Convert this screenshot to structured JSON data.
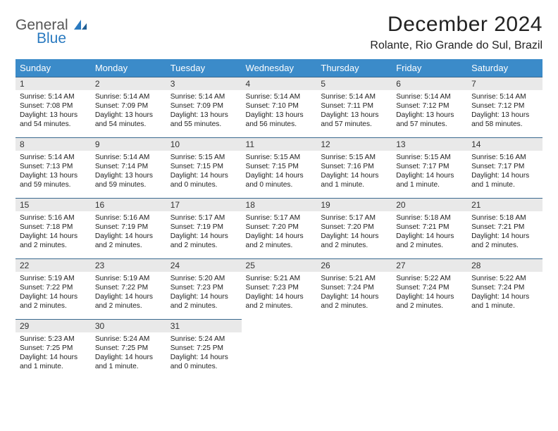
{
  "brand": {
    "word1": "General",
    "word2": "Blue",
    "accent_color": "#2a7ac0",
    "text_color": "#555"
  },
  "header": {
    "title": "December 2024",
    "location": "Rolante, Rio Grande do Sul, Brazil"
  },
  "style": {
    "header_bg": "#3b8bc9",
    "header_text": "#ffffff",
    "daynum_bg": "#e9e9e9",
    "row_border": "#3b6a8f",
    "body_text": "#222222",
    "font_family": "Arial",
    "title_fontsize": 30,
    "location_fontsize": 16,
    "weekday_fontsize": 13,
    "daynum_fontsize": 12,
    "cell_fontsize": 10.2
  },
  "weekdays": [
    "Sunday",
    "Monday",
    "Tuesday",
    "Wednesday",
    "Thursday",
    "Friday",
    "Saturday"
  ],
  "days": [
    {
      "n": "1",
      "sr": "5:14 AM",
      "ss": "7:08 PM",
      "dl": "13 hours and 54 minutes."
    },
    {
      "n": "2",
      "sr": "5:14 AM",
      "ss": "7:09 PM",
      "dl": "13 hours and 54 minutes."
    },
    {
      "n": "3",
      "sr": "5:14 AM",
      "ss": "7:09 PM",
      "dl": "13 hours and 55 minutes."
    },
    {
      "n": "4",
      "sr": "5:14 AM",
      "ss": "7:10 PM",
      "dl": "13 hours and 56 minutes."
    },
    {
      "n": "5",
      "sr": "5:14 AM",
      "ss": "7:11 PM",
      "dl": "13 hours and 57 minutes."
    },
    {
      "n": "6",
      "sr": "5:14 AM",
      "ss": "7:12 PM",
      "dl": "13 hours and 57 minutes."
    },
    {
      "n": "7",
      "sr": "5:14 AM",
      "ss": "7:12 PM",
      "dl": "13 hours and 58 minutes."
    },
    {
      "n": "8",
      "sr": "5:14 AM",
      "ss": "7:13 PM",
      "dl": "13 hours and 59 minutes."
    },
    {
      "n": "9",
      "sr": "5:14 AM",
      "ss": "7:14 PM",
      "dl": "13 hours and 59 minutes."
    },
    {
      "n": "10",
      "sr": "5:15 AM",
      "ss": "7:15 PM",
      "dl": "14 hours and 0 minutes."
    },
    {
      "n": "11",
      "sr": "5:15 AM",
      "ss": "7:15 PM",
      "dl": "14 hours and 0 minutes."
    },
    {
      "n": "12",
      "sr": "5:15 AM",
      "ss": "7:16 PM",
      "dl": "14 hours and 1 minute."
    },
    {
      "n": "13",
      "sr": "5:15 AM",
      "ss": "7:17 PM",
      "dl": "14 hours and 1 minute."
    },
    {
      "n": "14",
      "sr": "5:16 AM",
      "ss": "7:17 PM",
      "dl": "14 hours and 1 minute."
    },
    {
      "n": "15",
      "sr": "5:16 AM",
      "ss": "7:18 PM",
      "dl": "14 hours and 2 minutes."
    },
    {
      "n": "16",
      "sr": "5:16 AM",
      "ss": "7:19 PM",
      "dl": "14 hours and 2 minutes."
    },
    {
      "n": "17",
      "sr": "5:17 AM",
      "ss": "7:19 PM",
      "dl": "14 hours and 2 minutes."
    },
    {
      "n": "18",
      "sr": "5:17 AM",
      "ss": "7:20 PM",
      "dl": "14 hours and 2 minutes."
    },
    {
      "n": "19",
      "sr": "5:17 AM",
      "ss": "7:20 PM",
      "dl": "14 hours and 2 minutes."
    },
    {
      "n": "20",
      "sr": "5:18 AM",
      "ss": "7:21 PM",
      "dl": "14 hours and 2 minutes."
    },
    {
      "n": "21",
      "sr": "5:18 AM",
      "ss": "7:21 PM",
      "dl": "14 hours and 2 minutes."
    },
    {
      "n": "22",
      "sr": "5:19 AM",
      "ss": "7:22 PM",
      "dl": "14 hours and 2 minutes."
    },
    {
      "n": "23",
      "sr": "5:19 AM",
      "ss": "7:22 PM",
      "dl": "14 hours and 2 minutes."
    },
    {
      "n": "24",
      "sr": "5:20 AM",
      "ss": "7:23 PM",
      "dl": "14 hours and 2 minutes."
    },
    {
      "n": "25",
      "sr": "5:21 AM",
      "ss": "7:23 PM",
      "dl": "14 hours and 2 minutes."
    },
    {
      "n": "26",
      "sr": "5:21 AM",
      "ss": "7:24 PM",
      "dl": "14 hours and 2 minutes."
    },
    {
      "n": "27",
      "sr": "5:22 AM",
      "ss": "7:24 PM",
      "dl": "14 hours and 2 minutes."
    },
    {
      "n": "28",
      "sr": "5:22 AM",
      "ss": "7:24 PM",
      "dl": "14 hours and 1 minute."
    },
    {
      "n": "29",
      "sr": "5:23 AM",
      "ss": "7:25 PM",
      "dl": "14 hours and 1 minute."
    },
    {
      "n": "30",
      "sr": "5:24 AM",
      "ss": "7:25 PM",
      "dl": "14 hours and 1 minute."
    },
    {
      "n": "31",
      "sr": "5:24 AM",
      "ss": "7:25 PM",
      "dl": "14 hours and 0 minutes."
    }
  ],
  "labels": {
    "sunrise": "Sunrise: ",
    "sunset": "Sunset: ",
    "daylight": "Daylight: "
  }
}
